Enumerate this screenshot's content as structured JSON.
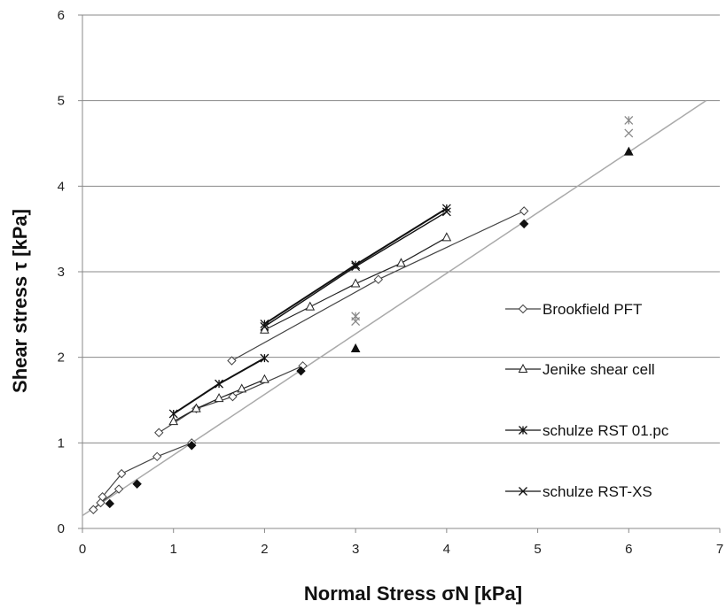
{
  "chart_data": {
    "type": "scatter",
    "xlabel": "Normal Stress σN [kPa]",
    "ylabel": "Shear stress τ [kPa]",
    "xlim": [
      0,
      7
    ],
    "ylim": [
      0,
      6
    ],
    "xticks": [
      0,
      1,
      2,
      3,
      4,
      5,
      6,
      7
    ],
    "yticks": [
      0,
      1,
      2,
      3,
      4,
      5,
      6
    ],
    "grid": "horizontal",
    "legend_position": "right",
    "reference_line": {
      "from": [
        0,
        0.15
      ],
      "to": [
        6.85,
        5.0
      ],
      "color": "#aaaaaa"
    },
    "series": [
      {
        "name": "Brookfield PFT",
        "marker": "diamond-open",
        "color": "#444444",
        "segments": [
          [
            [
              0.12,
              0.22
            ],
            [
              0.2,
              0.3
            ],
            [
              0.4,
              0.46
            ]
          ],
          [
            [
              0.22,
              0.37
            ],
            [
              0.43,
              0.64
            ],
            [
              0.82,
              0.84
            ],
            [
              1.2,
              1.0
            ]
          ],
          [
            [
              0.84,
              1.12
            ],
            [
              1.25,
              1.4
            ],
            [
              1.65,
              1.54
            ],
            [
              2.42,
              1.9
            ]
          ],
          [
            [
              1.64,
              1.96
            ],
            [
              3.25,
              2.91
            ],
            [
              4.85,
              3.71
            ]
          ]
        ]
      },
      {
        "name": "Jenike shear cell",
        "marker": "triangle-open",
        "color": "#222222",
        "segments": [
          [
            [
              1.0,
              1.25
            ],
            [
              1.25,
              1.4
            ],
            [
              1.5,
              1.52
            ],
            [
              1.75,
              1.63
            ],
            [
              2.0,
              1.74
            ]
          ],
          [
            [
              2.0,
              2.32
            ],
            [
              2.5,
              2.59
            ],
            [
              3.0,
              2.86
            ],
            [
              3.5,
              3.1
            ],
            [
              4.0,
              3.4
            ]
          ]
        ]
      },
      {
        "name": "schulze RST 01.pc",
        "marker": "asterisk",
        "color": "#111111",
        "segments": [
          [
            [
              1.0,
              1.34
            ],
            [
              1.5,
              1.69
            ],
            [
              2.0,
              1.99
            ]
          ],
          [
            [
              2.0,
              2.39
            ],
            [
              3.0,
              3.08
            ],
            [
              4.0,
              3.74
            ]
          ]
        ]
      },
      {
        "name": "schulze RST-XS",
        "marker": "x",
        "color": "#111111",
        "segments": [
          [
            [
              2.0,
              2.36
            ],
            [
              3.0,
              3.06
            ],
            [
              4.0,
              3.7
            ]
          ]
        ]
      }
    ],
    "extra_points": [
      {
        "marker": "diamond-filled",
        "color": "#111111",
        "points": [
          [
            0.3,
            0.29
          ],
          [
            0.6,
            0.52
          ],
          [
            1.2,
            0.97
          ],
          [
            2.4,
            1.84
          ],
          [
            4.85,
            3.56
          ]
        ]
      },
      {
        "marker": "triangle-filled",
        "color": "#111111",
        "points": [
          [
            3.0,
            2.1
          ],
          [
            6.0,
            4.4
          ]
        ]
      },
      {
        "marker": "asterisk",
        "color": "#888888",
        "points": [
          [
            3.0,
            2.48
          ],
          [
            6.0,
            4.77
          ]
        ]
      },
      {
        "marker": "x",
        "color": "#888888",
        "points": [
          [
            3.0,
            2.42
          ],
          [
            6.0,
            4.62
          ]
        ]
      }
    ]
  }
}
